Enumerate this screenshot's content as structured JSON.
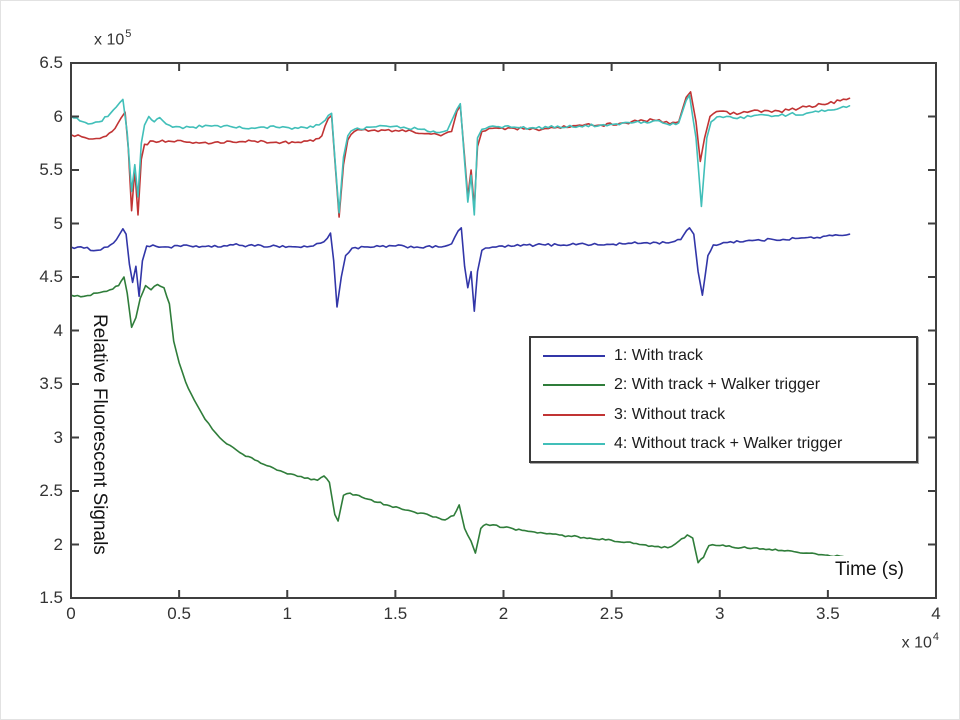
{
  "figure": {
    "background": "#ffffff",
    "axis_color": "#3f3f3f",
    "tick_label_color": "#333333"
  },
  "chart_data": {
    "type": "line",
    "title": "",
    "xlabel": "Time (s)",
    "ylabel": "Relative Fluorescent Signals",
    "xlim": [
      0,
      4
    ],
    "ylim": [
      1.5,
      6.5
    ],
    "x_unit_multiplier": {
      "base": "x 10",
      "exp": "4"
    },
    "y_unit_multiplier": {
      "base": "x 10",
      "exp": "5"
    },
    "xticks": [
      "0",
      "0.5",
      "1",
      "1.5",
      "2",
      "2.5",
      "3",
      "3.5",
      "4"
    ],
    "yticks": [
      "1.5",
      "2",
      "2.5",
      "3",
      "3.5",
      "4",
      "4.5",
      "5",
      "5.5",
      "6",
      "6.5"
    ],
    "grid": false,
    "legend_position": "inside-middle-right",
    "series": [
      {
        "name": "1: With track",
        "color": "#3236a8",
        "noise": 0.012,
        "points": [
          [
            0,
            4.78
          ],
          [
            0.06,
            4.77
          ],
          [
            0.12,
            4.75
          ],
          [
            0.17,
            4.78
          ],
          [
            0.21,
            4.85
          ],
          [
            0.24,
            4.95
          ],
          [
            0.255,
            4.9
          ],
          [
            0.27,
            4.62
          ],
          [
            0.285,
            4.45
          ],
          [
            0.3,
            4.6
          ],
          [
            0.315,
            4.32
          ],
          [
            0.33,
            4.65
          ],
          [
            0.35,
            4.79
          ],
          [
            0.45,
            4.78
          ],
          [
            0.55,
            4.79
          ],
          [
            0.65,
            4.78
          ],
          [
            0.75,
            4.8
          ],
          [
            0.85,
            4.79
          ],
          [
            0.95,
            4.79
          ],
          [
            1.05,
            4.78
          ],
          [
            1.12,
            4.79
          ],
          [
            1.17,
            4.83
          ],
          [
            1.2,
            4.91
          ],
          [
            1.215,
            4.65
          ],
          [
            1.23,
            4.22
          ],
          [
            1.25,
            4.5
          ],
          [
            1.27,
            4.7
          ],
          [
            1.3,
            4.77
          ],
          [
            1.4,
            4.78
          ],
          [
            1.5,
            4.79
          ],
          [
            1.6,
            4.78
          ],
          [
            1.7,
            4.78
          ],
          [
            1.76,
            4.81
          ],
          [
            1.79,
            4.93
          ],
          [
            1.805,
            4.96
          ],
          [
            1.82,
            4.6
          ],
          [
            1.835,
            4.4
          ],
          [
            1.85,
            4.55
          ],
          [
            1.865,
            4.18
          ],
          [
            1.88,
            4.55
          ],
          [
            1.9,
            4.75
          ],
          [
            1.95,
            4.78
          ],
          [
            2.05,
            4.79
          ],
          [
            2.15,
            4.8
          ],
          [
            2.25,
            4.8
          ],
          [
            2.35,
            4.81
          ],
          [
            2.45,
            4.8
          ],
          [
            2.55,
            4.81
          ],
          [
            2.65,
            4.82
          ],
          [
            2.75,
            4.82
          ],
          [
            2.82,
            4.85
          ],
          [
            2.86,
            4.96
          ],
          [
            2.88,
            4.9
          ],
          [
            2.9,
            4.55
          ],
          [
            2.92,
            4.33
          ],
          [
            2.945,
            4.7
          ],
          [
            2.97,
            4.8
          ],
          [
            3.05,
            4.83
          ],
          [
            3.15,
            4.84
          ],
          [
            3.25,
            4.85
          ],
          [
            3.35,
            4.86
          ],
          [
            3.45,
            4.87
          ],
          [
            3.55,
            4.89
          ],
          [
            3.6,
            4.9
          ]
        ]
      },
      {
        "name": "2: With track + Walker trigger",
        "color": "#2f7d3a",
        "noise": 0.009,
        "points": [
          [
            0,
            4.33
          ],
          [
            0.06,
            4.32
          ],
          [
            0.12,
            4.35
          ],
          [
            0.18,
            4.38
          ],
          [
            0.22,
            4.42
          ],
          [
            0.245,
            4.5
          ],
          [
            0.26,
            4.35
          ],
          [
            0.28,
            4.03
          ],
          [
            0.3,
            4.12
          ],
          [
            0.32,
            4.3
          ],
          [
            0.345,
            4.42
          ],
          [
            0.37,
            4.38
          ],
          [
            0.4,
            4.43
          ],
          [
            0.43,
            4.4
          ],
          [
            0.455,
            4.25
          ],
          [
            0.475,
            3.9
          ],
          [
            0.5,
            3.7
          ],
          [
            0.53,
            3.52
          ],
          [
            0.57,
            3.35
          ],
          [
            0.62,
            3.17
          ],
          [
            0.67,
            3.04
          ],
          [
            0.72,
            2.94
          ],
          [
            0.78,
            2.86
          ],
          [
            0.85,
            2.79
          ],
          [
            0.92,
            2.73
          ],
          [
            1.0,
            2.66
          ],
          [
            1.08,
            2.62
          ],
          [
            1.14,
            2.6
          ],
          [
            1.17,
            2.64
          ],
          [
            1.195,
            2.58
          ],
          [
            1.22,
            2.28
          ],
          [
            1.235,
            2.22
          ],
          [
            1.26,
            2.46
          ],
          [
            1.29,
            2.48
          ],
          [
            1.36,
            2.43
          ],
          [
            1.46,
            2.37
          ],
          [
            1.56,
            2.32
          ],
          [
            1.66,
            2.27
          ],
          [
            1.73,
            2.23
          ],
          [
            1.77,
            2.27
          ],
          [
            1.795,
            2.37
          ],
          [
            1.82,
            2.15
          ],
          [
            1.85,
            2.03
          ],
          [
            1.87,
            1.92
          ],
          [
            1.895,
            2.15
          ],
          [
            1.92,
            2.19
          ],
          [
            2.0,
            2.16
          ],
          [
            2.1,
            2.13
          ],
          [
            2.2,
            2.1
          ],
          [
            2.3,
            2.08
          ],
          [
            2.4,
            2.06
          ],
          [
            2.5,
            2.04
          ],
          [
            2.6,
            2.01
          ],
          [
            2.7,
            1.98
          ],
          [
            2.76,
            1.97
          ],
          [
            2.81,
            2.03
          ],
          [
            2.85,
            2.09
          ],
          [
            2.875,
            2.06
          ],
          [
            2.9,
            1.83
          ],
          [
            2.925,
            1.88
          ],
          [
            2.95,
            1.99
          ],
          [
            3.0,
            1.99
          ],
          [
            3.1,
            1.97
          ],
          [
            3.2,
            1.96
          ],
          [
            3.3,
            1.94
          ],
          [
            3.4,
            1.92
          ],
          [
            3.5,
            1.9
          ],
          [
            3.6,
            1.88
          ]
        ]
      },
      {
        "name": "3: Without track",
        "color": "#c13434",
        "noise": 0.014,
        "points": [
          [
            0,
            5.83
          ],
          [
            0.05,
            5.81
          ],
          [
            0.1,
            5.79
          ],
          [
            0.15,
            5.81
          ],
          [
            0.19,
            5.86
          ],
          [
            0.23,
            5.98
          ],
          [
            0.25,
            6.04
          ],
          [
            0.265,
            5.7
          ],
          [
            0.28,
            5.12
          ],
          [
            0.295,
            5.5
          ],
          [
            0.31,
            5.08
          ],
          [
            0.325,
            5.6
          ],
          [
            0.34,
            5.74
          ],
          [
            0.38,
            5.77
          ],
          [
            0.45,
            5.77
          ],
          [
            0.55,
            5.76
          ],
          [
            0.65,
            5.75
          ],
          [
            0.75,
            5.76
          ],
          [
            0.85,
            5.77
          ],
          [
            0.95,
            5.76
          ],
          [
            1.05,
            5.76
          ],
          [
            1.12,
            5.77
          ],
          [
            1.16,
            5.82
          ],
          [
            1.19,
            5.98
          ],
          [
            1.205,
            6.01
          ],
          [
            1.22,
            5.6
          ],
          [
            1.24,
            5.06
          ],
          [
            1.26,
            5.55
          ],
          [
            1.28,
            5.78
          ],
          [
            1.31,
            5.86
          ],
          [
            1.36,
            5.88
          ],
          [
            1.42,
            5.86
          ],
          [
            1.5,
            5.87
          ],
          [
            1.58,
            5.86
          ],
          [
            1.65,
            5.84
          ],
          [
            1.71,
            5.82
          ],
          [
            1.76,
            5.86
          ],
          [
            1.785,
            6.05
          ],
          [
            1.8,
            6.1
          ],
          [
            1.82,
            5.62
          ],
          [
            1.835,
            5.25
          ],
          [
            1.85,
            5.5
          ],
          [
            1.865,
            5.15
          ],
          [
            1.88,
            5.72
          ],
          [
            1.9,
            5.86
          ],
          [
            1.95,
            5.89
          ],
          [
            2.05,
            5.89
          ],
          [
            2.15,
            5.88
          ],
          [
            2.25,
            5.9
          ],
          [
            2.35,
            5.92
          ],
          [
            2.45,
            5.92
          ],
          [
            2.55,
            5.94
          ],
          [
            2.65,
            5.96
          ],
          [
            2.72,
            5.97
          ],
          [
            2.77,
            5.93
          ],
          [
            2.81,
            5.95
          ],
          [
            2.845,
            6.18
          ],
          [
            2.865,
            6.23
          ],
          [
            2.89,
            5.95
          ],
          [
            2.91,
            5.58
          ],
          [
            2.93,
            5.8
          ],
          [
            2.955,
            6.0
          ],
          [
            3.0,
            6.05
          ],
          [
            3.08,
            6.02
          ],
          [
            3.16,
            6.06
          ],
          [
            3.24,
            6.04
          ],
          [
            3.32,
            6.06
          ],
          [
            3.4,
            6.09
          ],
          [
            3.5,
            6.12
          ],
          [
            3.6,
            6.17
          ]
        ]
      },
      {
        "name": "4: Without track + Walker trigger",
        "color": "#41bfb9",
        "noise": 0.014,
        "points": [
          [
            0,
            6.0
          ],
          [
            0.04,
            5.96
          ],
          [
            0.08,
            5.93
          ],
          [
            0.13,
            5.95
          ],
          [
            0.17,
            6.0
          ],
          [
            0.21,
            6.09
          ],
          [
            0.24,
            6.16
          ],
          [
            0.26,
            5.85
          ],
          [
            0.28,
            5.3
          ],
          [
            0.295,
            5.55
          ],
          [
            0.31,
            5.25
          ],
          [
            0.325,
            5.75
          ],
          [
            0.34,
            5.92
          ],
          [
            0.36,
            6.0
          ],
          [
            0.385,
            5.95
          ],
          [
            0.41,
            5.99
          ],
          [
            0.44,
            5.93
          ],
          [
            0.47,
            5.9
          ],
          [
            0.55,
            5.9
          ],
          [
            0.65,
            5.91
          ],
          [
            0.75,
            5.9
          ],
          [
            0.85,
            5.89
          ],
          [
            0.95,
            5.9
          ],
          [
            1.05,
            5.89
          ],
          [
            1.12,
            5.9
          ],
          [
            1.16,
            5.94
          ],
          [
            1.19,
            6.01
          ],
          [
            1.205,
            6.03
          ],
          [
            1.22,
            5.62
          ],
          [
            1.24,
            5.1
          ],
          [
            1.26,
            5.62
          ],
          [
            1.28,
            5.82
          ],
          [
            1.31,
            5.88
          ],
          [
            1.38,
            5.9
          ],
          [
            1.46,
            5.91
          ],
          [
            1.54,
            5.9
          ],
          [
            1.62,
            5.88
          ],
          [
            1.69,
            5.85
          ],
          [
            1.74,
            5.87
          ],
          [
            1.785,
            6.07
          ],
          [
            1.8,
            6.12
          ],
          [
            1.82,
            5.58
          ],
          [
            1.835,
            5.2
          ],
          [
            1.85,
            5.45
          ],
          [
            1.865,
            5.08
          ],
          [
            1.88,
            5.8
          ],
          [
            1.9,
            5.88
          ],
          [
            1.95,
            5.91
          ],
          [
            2.05,
            5.9
          ],
          [
            2.15,
            5.89
          ],
          [
            2.25,
            5.91
          ],
          [
            2.35,
            5.91
          ],
          [
            2.45,
            5.92
          ],
          [
            2.55,
            5.94
          ],
          [
            2.65,
            5.95
          ],
          [
            2.72,
            5.96
          ],
          [
            2.77,
            5.92
          ],
          [
            2.81,
            5.94
          ],
          [
            2.845,
            6.15
          ],
          [
            2.86,
            6.2
          ],
          [
            2.89,
            5.8
          ],
          [
            2.915,
            5.16
          ],
          [
            2.94,
            5.8
          ],
          [
            2.96,
            5.95
          ],
          [
            3.0,
            6.0
          ],
          [
            3.08,
            5.98
          ],
          [
            3.16,
            6.01
          ],
          [
            3.24,
            6.0
          ],
          [
            3.32,
            6.02
          ],
          [
            3.4,
            6.03
          ],
          [
            3.5,
            6.06
          ],
          [
            3.6,
            6.1
          ]
        ]
      }
    ]
  }
}
